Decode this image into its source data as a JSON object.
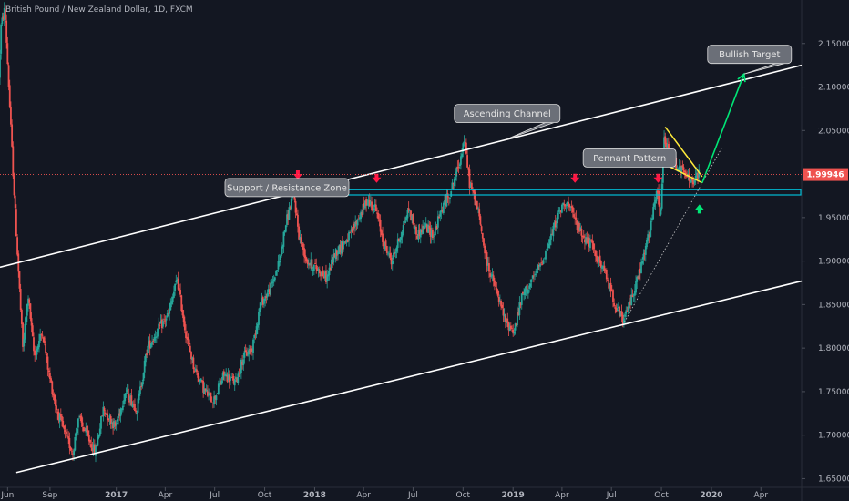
{
  "title": "British Pound / New Zealand Dollar, 1D, FXCM",
  "colors": {
    "background": "#131722",
    "up": "#26a69a",
    "down": "#ef5350",
    "channel": "#ffffff",
    "zone": "#00bcd4",
    "pennant": "#ffeb3b",
    "target_arrow": "#00e676",
    "marker_down": "#ff1744",
    "marker_up": "#00e676",
    "price_tag": "#ef5350",
    "callout_bg": "#6b6f78"
  },
  "chart_data": {
    "type": "candlestick",
    "x_range": [
      "2016-06-01",
      "2020-06-15"
    ],
    "y_range": [
      1.64,
      2.2
    ],
    "x_ticks": [
      {
        "date": "2016-06-15",
        "label": "Jun"
      },
      {
        "date": "2016-09-01",
        "label": "Sep"
      },
      {
        "date": "2017-01-01",
        "label": "2017"
      },
      {
        "date": "2017-04-01",
        "label": "Apr"
      },
      {
        "date": "2017-07-01",
        "label": "Jul"
      },
      {
        "date": "2017-10-01",
        "label": "Oct"
      },
      {
        "date": "2018-01-01",
        "label": "2018"
      },
      {
        "date": "2018-04-01",
        "label": "Apr"
      },
      {
        "date": "2018-07-01",
        "label": "Jul"
      },
      {
        "date": "2018-10-01",
        "label": "Oct"
      },
      {
        "date": "2019-01-01",
        "label": "2019"
      },
      {
        "date": "2019-04-01",
        "label": "Apr"
      },
      {
        "date": "2019-07-01",
        "label": "Jul"
      },
      {
        "date": "2019-10-01",
        "label": "Oct"
      },
      {
        "date": "2020-01-01",
        "label": "2020"
      },
      {
        "date": "2020-04-01",
        "label": "Apr"
      }
    ],
    "y_ticks": [
      {
        "value": 2.15,
        "label": "2.15000"
      },
      {
        "value": 2.1,
        "label": "2.10000"
      },
      {
        "value": 2.05,
        "label": "2.05000"
      },
      {
        "value": 1.95,
        "label": "1.95000"
      },
      {
        "value": 1.9,
        "label": "1.90000"
      },
      {
        "value": 1.85,
        "label": "1.85000"
      },
      {
        "value": 1.8,
        "label": "1.80000"
      },
      {
        "value": 1.75,
        "label": "1.75000"
      },
      {
        "value": 1.7,
        "label": "1.70000"
      },
      {
        "value": 1.65,
        "label": "1.65000"
      }
    ],
    "current_price": {
      "value": 1.99946,
      "label": "1.99946"
    },
    "price_path": [
      [
        "2016-06-01",
        2.11
      ],
      [
        "2016-06-05",
        2.17
      ],
      [
        "2016-06-12",
        2.19
      ],
      [
        "2016-06-20",
        2.09
      ],
      [
        "2016-06-28",
        1.99
      ],
      [
        "2016-07-05",
        1.91
      ],
      [
        "2016-07-15",
        1.8
      ],
      [
        "2016-07-25",
        1.86
      ],
      [
        "2016-08-05",
        1.79
      ],
      [
        "2016-08-20",
        1.82
      ],
      [
        "2016-09-01",
        1.77
      ],
      [
        "2016-09-15",
        1.73
      ],
      [
        "2016-10-01",
        1.7
      ],
      [
        "2016-10-15",
        1.68
      ],
      [
        "2016-10-25",
        1.72
      ],
      [
        "2016-11-10",
        1.7
      ],
      [
        "2016-11-25",
        1.68
      ],
      [
        "2016-12-10",
        1.73
      ],
      [
        "2017-01-01",
        1.71
      ],
      [
        "2017-01-20",
        1.75
      ],
      [
        "2017-02-10",
        1.73
      ],
      [
        "2017-03-01",
        1.8
      ],
      [
        "2017-03-20",
        1.82
      ],
      [
        "2017-04-10",
        1.84
      ],
      [
        "2017-04-25",
        1.88
      ],
      [
        "2017-05-10",
        1.82
      ],
      [
        "2017-05-25",
        1.78
      ],
      [
        "2017-06-15",
        1.75
      ],
      [
        "2017-07-01",
        1.74
      ],
      [
        "2017-07-20",
        1.77
      ],
      [
        "2017-08-10",
        1.76
      ],
      [
        "2017-08-25",
        1.79
      ],
      [
        "2017-09-10",
        1.8
      ],
      [
        "2017-09-25",
        1.85
      ],
      [
        "2017-10-15",
        1.87
      ],
      [
        "2017-10-30",
        1.9
      ],
      [
        "2017-11-10",
        1.94
      ],
      [
        "2017-11-25",
        1.98
      ],
      [
        "2017-12-05",
        1.93
      ],
      [
        "2017-12-20",
        1.9
      ],
      [
        "2018-01-10",
        1.89
      ],
      [
        "2018-01-25",
        1.88
      ],
      [
        "2018-02-10",
        1.91
      ],
      [
        "2018-02-25",
        1.92
      ],
      [
        "2018-03-10",
        1.93
      ],
      [
        "2018-03-25",
        1.95
      ],
      [
        "2018-04-10",
        1.97
      ],
      [
        "2018-04-25",
        1.96
      ],
      [
        "2018-05-10",
        1.92
      ],
      [
        "2018-05-25",
        1.9
      ],
      [
        "2018-06-10",
        1.93
      ],
      [
        "2018-06-25",
        1.96
      ],
      [
        "2018-07-10",
        1.93
      ],
      [
        "2018-07-25",
        1.94
      ],
      [
        "2018-08-10",
        1.93
      ],
      [
        "2018-08-25",
        1.96
      ],
      [
        "2018-09-10",
        1.98
      ],
      [
        "2018-09-25",
        2.01
      ],
      [
        "2018-10-05",
        2.04
      ],
      [
        "2018-10-15",
        1.99
      ],
      [
        "2018-10-30",
        1.96
      ],
      [
        "2018-11-15",
        1.9
      ],
      [
        "2018-12-01",
        1.87
      ],
      [
        "2018-12-20",
        1.83
      ],
      [
        "2019-01-05",
        1.82
      ],
      [
        "2019-01-20",
        1.86
      ],
      [
        "2019-02-10",
        1.88
      ],
      [
        "2019-02-25",
        1.9
      ],
      [
        "2019-03-10",
        1.92
      ],
      [
        "2019-03-25",
        1.95
      ],
      [
        "2019-04-10",
        1.97
      ],
      [
        "2019-04-25",
        1.95
      ],
      [
        "2019-05-10",
        1.93
      ],
      [
        "2019-05-25",
        1.92
      ],
      [
        "2019-06-10",
        1.9
      ],
      [
        "2019-06-25",
        1.88
      ],
      [
        "2019-07-10",
        1.85
      ],
      [
        "2019-07-25",
        1.83
      ],
      [
        "2019-08-10",
        1.86
      ],
      [
        "2019-08-25",
        1.89
      ],
      [
        "2019-09-10",
        1.93
      ],
      [
        "2019-09-25",
        1.98
      ],
      [
        "2019-10-01",
        1.95
      ],
      [
        "2019-10-08",
        2.04
      ],
      [
        "2019-10-20",
        2.02
      ],
      [
        "2019-11-01",
        2.01
      ],
      [
        "2019-11-15",
        2.0
      ],
      [
        "2019-11-30",
        1.99
      ],
      [
        "2019-12-10",
        1.99946
      ]
    ],
    "annotations": [
      {
        "type": "channel_line",
        "name": "upper-channel",
        "from": [
          "2016-06-01",
          1.893
        ],
        "to": [
          "2020-06-15",
          2.125
        ]
      },
      {
        "type": "channel_line",
        "name": "lower-channel",
        "from": [
          "2016-07-01",
          1.657
        ],
        "to": [
          "2020-06-15",
          1.877
        ]
      },
      {
        "type": "zone",
        "name": "support-resistance-zone",
        "from": [
          "2017-11-10",
          1.982
        ],
        "to": [
          "2020-06-15",
          1.976
        ]
      },
      {
        "type": "pennant_line",
        "name": "pennant-upper",
        "from": [
          "2019-10-08",
          2.054
        ],
        "to": [
          "2019-12-15",
          1.997
        ]
      },
      {
        "type": "pennant_line",
        "name": "pennant-lower",
        "from": [
          "2019-10-08",
          2.011
        ],
        "to": [
          "2019-12-15",
          1.99
        ]
      },
      {
        "type": "dotted_trend",
        "name": "rising-trendline",
        "from": [
          "2019-07-25",
          1.83
        ],
        "to": [
          "2020-01-20",
          2.03
        ]
      },
      {
        "type": "arrow",
        "name": "bullish-target-arrow",
        "from": [
          "2019-12-15",
          1.99
        ],
        "to": [
          "2020-03-01",
          2.115
        ]
      },
      {
        "type": "marker_down",
        "name": "resistance-marker",
        "at": [
          "2017-12-01",
          1.997
        ]
      },
      {
        "type": "marker_down",
        "name": "resistance-marker",
        "at": [
          "2018-04-25",
          1.993
        ]
      },
      {
        "type": "marker_down",
        "name": "resistance-marker",
        "at": [
          "2019-04-25",
          1.993
        ]
      },
      {
        "type": "marker_down",
        "name": "resistance-marker",
        "at": [
          "2019-09-25",
          1.993
        ]
      },
      {
        "type": "marker_up",
        "name": "support-marker",
        "at": [
          "2019-12-10",
          1.962
        ]
      }
    ],
    "callouts": [
      {
        "name": "callout-bullish-target",
        "text": "Bullish Target",
        "box": [
          "2019-12-25",
          2.148,
          92
        ],
        "tail": [
          "2020-03-01",
          2.115
        ]
      },
      {
        "name": "callout-ascending-channel",
        "text": "Ascending Channel",
        "box": [
          "2018-09-15",
          2.08,
          116
        ],
        "tail": [
          "2018-12-20",
          2.04
        ]
      },
      {
        "name": "callout-pennant-pattern",
        "text": "Pennant Pattern",
        "box": [
          "2019-05-10",
          2.029,
          102
        ],
        "tail": [
          "2019-10-05",
          2.03
        ]
      },
      {
        "name": "callout-support-resistance",
        "text": "Support / Resistance Zone",
        "box": [
          "2017-07-20",
          1.995,
          136
        ],
        "tail": [
          "2017-11-10",
          1.983
        ]
      }
    ]
  }
}
